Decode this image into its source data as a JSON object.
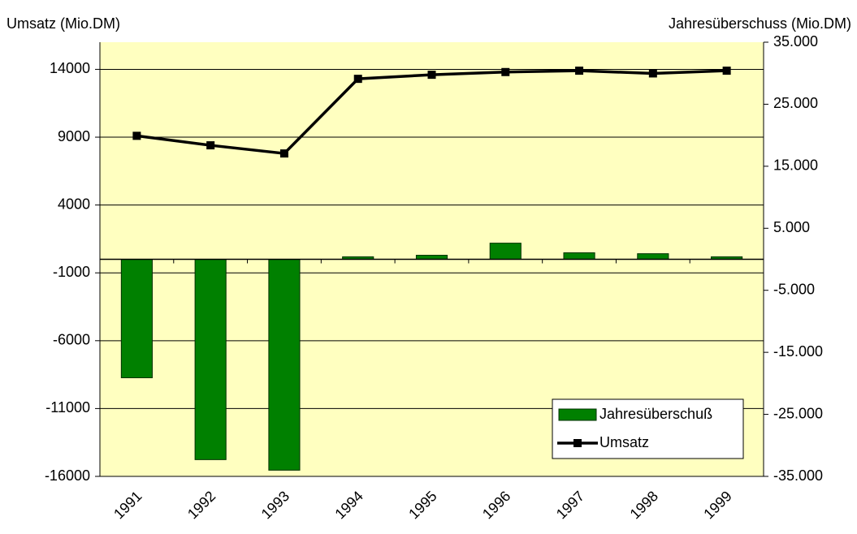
{
  "chart_data": {
    "type": "bar-line",
    "y_title": "Umsatz (Mio.DM)",
    "y2_title": "Jahresüberschuss (Mio.DM)",
    "categories": [
      "1991",
      "1992",
      "1993",
      "1994",
      "1995",
      "1996",
      "1997",
      "1998",
      "1999"
    ],
    "series": [
      {
        "name": "Jahresüberschuß",
        "type": "bar",
        "axis": "y2",
        "color": "#008000",
        "values": [
          -19100,
          -32300,
          -34000,
          400,
          650,
          2600,
          1050,
          900,
          400
        ]
      },
      {
        "name": "Umsatz",
        "type": "line",
        "axis": "y",
        "color": "#000000",
        "values": [
          9100,
          8400,
          7800,
          13300,
          13600,
          13800,
          13900,
          13700,
          13900
        ]
      }
    ],
    "ylim": [
      -16000,
      16000
    ],
    "yticks": [
      -16000,
      -11000,
      -6000,
      -1000,
      4000,
      9000,
      14000
    ],
    "y2lim": [
      -35000,
      35000
    ],
    "y2ticks": [
      {
        "value": -35000,
        "label": "-35.000"
      },
      {
        "value": -25000,
        "label": "-25.000"
      },
      {
        "value": -15000,
        "label": "-15.000"
      },
      {
        "value": -5000,
        "label": "-5.000"
      },
      {
        "value": 5000,
        "label": "5.000"
      },
      {
        "value": 15000,
        "label": "15.000"
      },
      {
        "value": 25000,
        "label": "25.000"
      },
      {
        "value": 35000,
        "label": "35.000"
      }
    ],
    "grid": true,
    "legend": "lower right",
    "background": "#ffffc0"
  }
}
